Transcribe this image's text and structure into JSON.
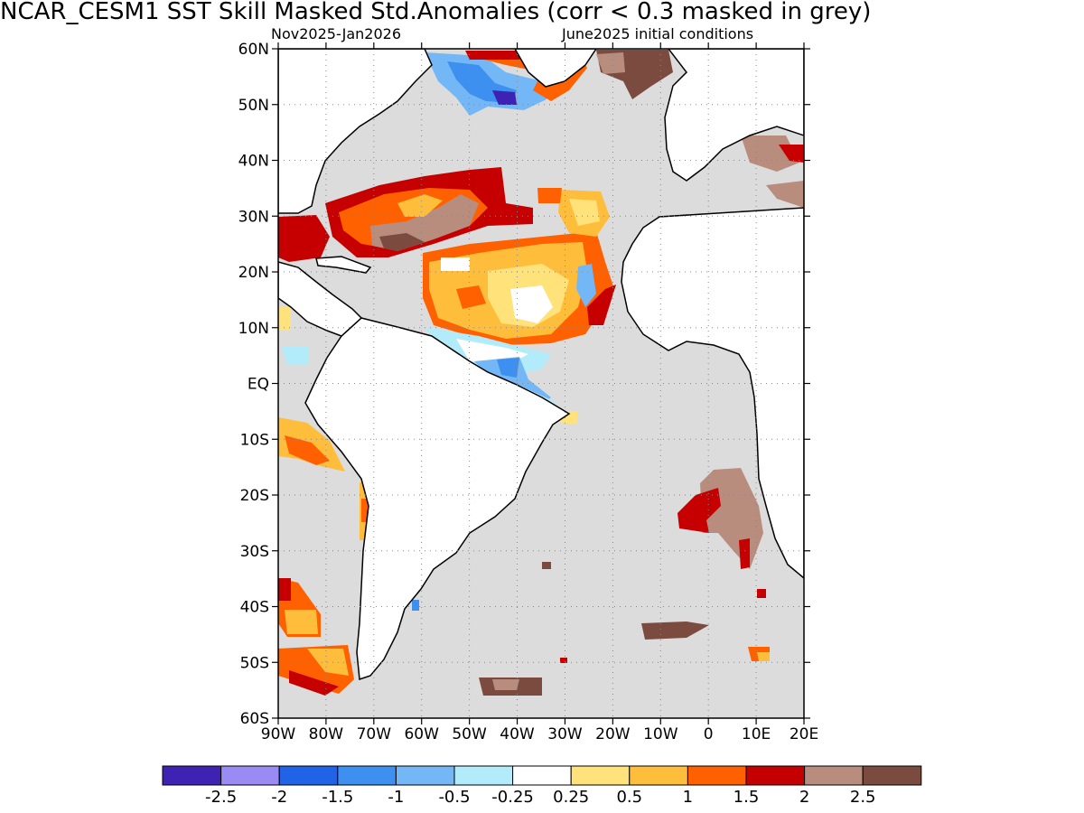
{
  "title": "NCAR_CESM1   SST Skill Masked Std.Anomalies (corr < 0.3 masked in grey)",
  "subtitle_left": "Nov2025-Jan2026",
  "subtitle_right": "June2025 initial conditions",
  "map": {
    "lon_range": [
      -90,
      20
    ],
    "lat_range": [
      -60,
      60
    ],
    "lat_labels": [
      "60N",
      "50N",
      "40N",
      "30N",
      "20N",
      "10N",
      "EQ",
      "10S",
      "20S",
      "30S",
      "40S",
      "50S",
      "60S"
    ],
    "lon_labels": [
      "90W",
      "80W",
      "70W",
      "60W",
      "50W",
      "40W",
      "30W",
      "20W",
      "10W",
      "0",
      "10E",
      "20E"
    ],
    "mask_color": "#dcdcdc",
    "land_color": "#ffffff",
    "coast_color": "#000000",
    "grid": "dotted"
  },
  "colorbar": {
    "colors": [
      "#3e22b4",
      "#9a8af3",
      "#2063e7",
      "#3d8ff0",
      "#74b7f6",
      "#b2ecfa",
      "#ffffff",
      "#ffe27a",
      "#ffbd3c",
      "#ff6000",
      "#c60000",
      "#b88d7e",
      "#7b4b3f"
    ],
    "labels": [
      "-2.5",
      "-2",
      "-1.5",
      "-1",
      "-0.5",
      "-0.25",
      "0.25",
      "0.5",
      "1",
      "1.5",
      "2",
      "2.5"
    ]
  }
}
